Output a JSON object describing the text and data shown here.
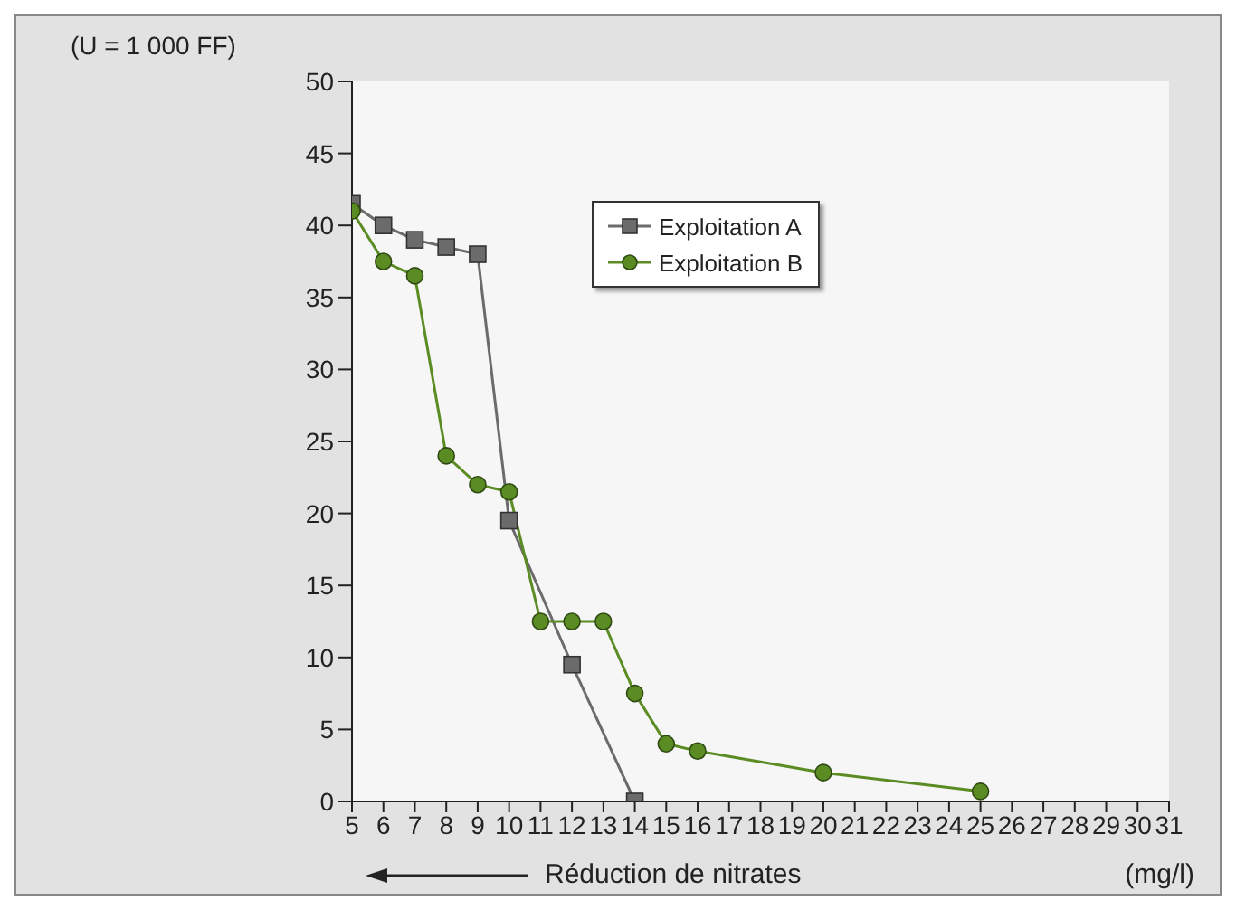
{
  "chart_data": {
    "type": "line",
    "ylabel": "(U = 1 000 FF)",
    "xlabel": "Réduction de nitrates",
    "annotations": [
      "(mg/l)"
    ],
    "series": [
      {
        "name": "Exploitation A",
        "color": "#6b6b6b",
        "marker": "square",
        "x": [
          5,
          6,
          7,
          8,
          9,
          10,
          12,
          14
        ],
        "values": [
          41.5,
          40,
          39,
          38.5,
          38,
          19.5,
          9.5,
          0
        ]
      },
      {
        "name": "Exploitation B",
        "color": "#5b8c23",
        "marker": "circle",
        "x": [
          5,
          6,
          7,
          8,
          9,
          10,
          11,
          12,
          13,
          14,
          15,
          16,
          20,
          25
        ],
        "values": [
          41,
          37.5,
          36.5,
          24,
          22,
          21.5,
          12.5,
          12.5,
          12.5,
          7.5,
          4,
          3.5,
          2,
          0.7
        ]
      }
    ],
    "xlim": [
      5,
      31
    ],
    "xticks": [
      5,
      6,
      7,
      8,
      9,
      10,
      11,
      12,
      13,
      14,
      15,
      16,
      17,
      18,
      19,
      20,
      21,
      22,
      23,
      24,
      25,
      26,
      27,
      28,
      29,
      30,
      31
    ],
    "ylim": [
      0,
      50
    ],
    "yticks": [
      0,
      5,
      10,
      15,
      20,
      25,
      30,
      35,
      40,
      45,
      50
    ],
    "grid": false,
    "legend": "top"
  }
}
